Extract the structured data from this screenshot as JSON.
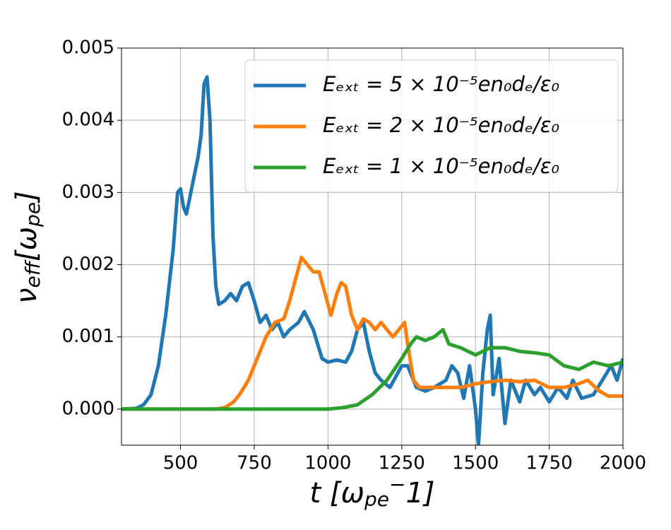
{
  "chart_data": {
    "type": "line",
    "xlabel": [
      {
        "text": "t   [ω"
      },
      {
        "text": "pe",
        "sub": true
      },
      {
        "text": "−",
        "sup": true
      },
      {
        "text": "1]"
      }
    ],
    "ylabel": [
      {
        "text": "ν"
      },
      {
        "text": "eff",
        "sub": true
      },
      {
        "text": "[ω"
      },
      {
        "text": "pe",
        "sub": true
      },
      {
        "text": "]"
      }
    ],
    "xlim": [
      300,
      2000
    ],
    "xticks": [
      500,
      750,
      1000,
      1250,
      1500,
      1750,
      2000
    ],
    "ylim": [
      -0.0005,
      0.005
    ],
    "yticks": [
      {
        "value": 0,
        "label": "0.000"
      },
      0.001,
      0.002,
      0.003,
      0.004,
      0.005
    ],
    "grid": true,
    "legend": "upper right",
    "series": [
      {
        "name": "Eₑₓₜ = 5 × 10⁻⁵en₀dₑ/ε₀",
        "color": "#1f77b4",
        "x": [
          300,
          350,
          375,
          400,
          425,
          450,
          475,
          490,
          500,
          510,
          520,
          530,
          550,
          560,
          570,
          580,
          590,
          600,
          610,
          620,
          630,
          650,
          670,
          690,
          710,
          730,
          750,
          770,
          790,
          810,
          830,
          850,
          870,
          900,
          920,
          950,
          980,
          1000,
          1030,
          1060,
          1080,
          1100,
          1120,
          1140,
          1160,
          1180,
          1210,
          1250,
          1270,
          1300,
          1330,
          1360,
          1400,
          1420,
          1440,
          1460,
          1480,
          1500,
          1510,
          1525,
          1540,
          1550,
          1560,
          1580,
          1600,
          1620,
          1650,
          1670,
          1700,
          1720,
          1750,
          1780,
          1810,
          1830,
          1860,
          1900,
          1930,
          1960,
          1980,
          2000
        ],
        "values": [
          0,
          1e-05,
          6e-05,
          0.0002,
          0.0006,
          0.0013,
          0.0022,
          0.003,
          0.00305,
          0.0028,
          0.0027,
          0.0029,
          0.0033,
          0.0035,
          0.0038,
          0.0045,
          0.0046,
          0.004,
          0.0024,
          0.0017,
          0.00145,
          0.0015,
          0.0016,
          0.0015,
          0.0017,
          0.00175,
          0.0015,
          0.0012,
          0.0013,
          0.0011,
          0.0012,
          0.001,
          0.0011,
          0.0012,
          0.00135,
          0.0011,
          0.0007,
          0.00065,
          0.00068,
          0.00065,
          0.0008,
          0.0011,
          0.0012,
          0.0008,
          0.0005,
          0.0004,
          0.0003,
          0.0006,
          0.0006,
          0.0003,
          0.00025,
          0.0003,
          0.0004,
          0.0006,
          0.0005,
          0.00015,
          0.0006,
          0,
          -0.0005,
          0.0005,
          0.0011,
          0.0013,
          0.0002,
          0.0007,
          -0.0002,
          0.0004,
          0.0001,
          0.0004,
          0.0002,
          0.0003,
          0.0001,
          0.0003,
          0.00015,
          0.0004,
          0.00015,
          0.0002,
          0.0004,
          0.0006,
          0.0004,
          0.0007
        ]
      },
      {
        "name": "Eₑₓₜ = 2 × 10⁻⁵en₀dₑ/ε₀",
        "color": "#ff7f0e",
        "x": [
          300,
          620,
          650,
          680,
          700,
          730,
          760,
          790,
          820,
          850,
          870,
          890,
          910,
          930,
          950,
          970,
          990,
          1010,
          1030,
          1045,
          1060,
          1080,
          1100,
          1120,
          1140,
          1160,
          1180,
          1200,
          1220,
          1240,
          1260,
          1270,
          1290,
          1310,
          1350,
          1400,
          1450,
          1500,
          1550,
          1600,
          1650,
          1700,
          1750,
          1800,
          1850,
          1880,
          1920,
          1950,
          2000
        ],
        "values": [
          0,
          0,
          2e-05,
          0.0001,
          0.0002,
          0.0004,
          0.0007,
          0.001,
          0.0012,
          0.00125,
          0.0015,
          0.0018,
          0.0021,
          0.002,
          0.0019,
          0.0019,
          0.0016,
          0.0013,
          0.0016,
          0.00175,
          0.0017,
          0.0013,
          0.0011,
          0.00125,
          0.0012,
          0.0011,
          0.0012,
          0.0011,
          0.001,
          0.0011,
          0.0012,
          0.0009,
          0.0004,
          0.0003,
          0.0003,
          0.0003,
          0.0003,
          0.00035,
          0.00038,
          0.0004,
          0.00038,
          0.0004,
          0.0003,
          0.0003,
          0.00035,
          0.0004,
          0.00025,
          0.00018,
          0.00018
        ]
      },
      {
        "name": "Eₑₓₜ = 1 × 10⁻⁵en₀dₑ/ε₀",
        "color": "#2ca02c",
        "x": [
          300,
          1000,
          1050,
          1100,
          1150,
          1200,
          1250,
          1280,
          1300,
          1330,
          1360,
          1390,
          1410,
          1450,
          1500,
          1550,
          1600,
          1650,
          1700,
          1750,
          1800,
          1850,
          1900,
          1950,
          2000
        ],
        "values": [
          0,
          0,
          2e-05,
          6e-05,
          0.0002,
          0.0004,
          0.0007,
          0.0009,
          0.001,
          0.00095,
          0.001,
          0.0011,
          0.0009,
          0.00085,
          0.00075,
          0.00085,
          0.00085,
          0.0008,
          0.00078,
          0.00075,
          0.0006,
          0.00055,
          0.00065,
          0.0006,
          0.00065
        ]
      }
    ]
  }
}
